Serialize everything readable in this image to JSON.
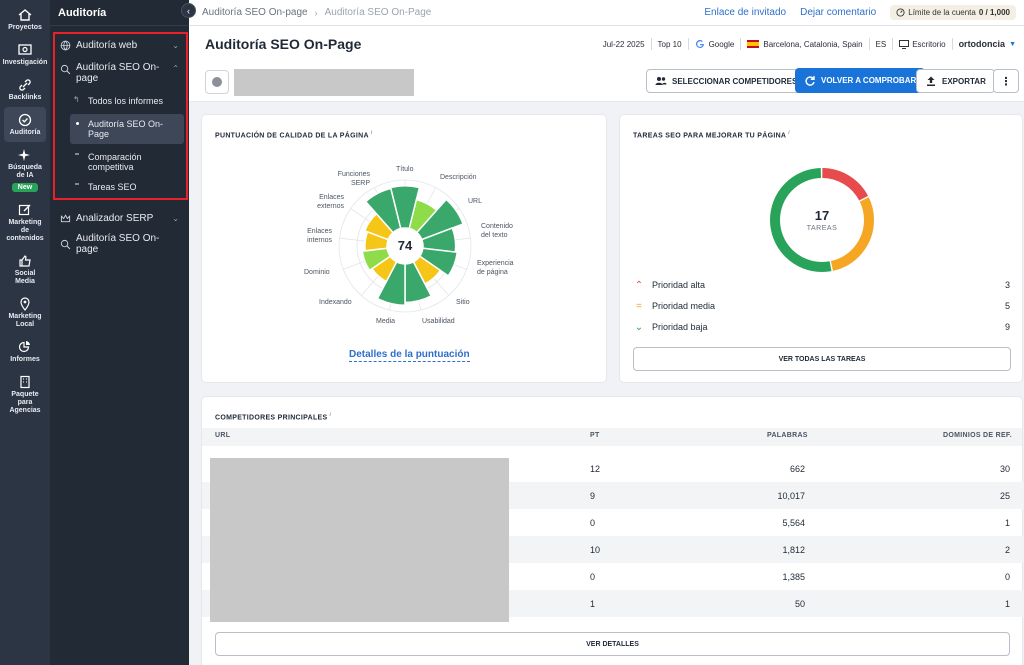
{
  "rail": [
    {
      "label": "Proyectos",
      "icon": "home-icon"
    },
    {
      "label": "Investigación",
      "icon": "research-icon"
    },
    {
      "label": "Backlinks",
      "icon": "link-icon"
    },
    {
      "label": "Auditoría",
      "icon": "check-circle-icon",
      "active": true
    },
    {
      "label": "Búsqueda de IA",
      "icon": "sparkle-icon",
      "badge": "New"
    },
    {
      "label": "Marketing de contenidos",
      "icon": "edit-icon"
    },
    {
      "label": "Social Media",
      "icon": "thumbs-up-icon"
    },
    {
      "label": "Marketing Local",
      "icon": "pin-icon"
    },
    {
      "label": "Informes",
      "icon": "pie-chart-icon"
    },
    {
      "label": "Paquete para Agencias",
      "icon": "building-icon"
    }
  ],
  "sidebar": {
    "title": "Auditoría",
    "groups": [
      {
        "label": "Auditoría web",
        "icon": "globe-icon"
      },
      {
        "label": "Auditoría SEO On-page",
        "icon": "search-icon"
      },
      {
        "label": "Analizador SERP",
        "icon": "crown-icon"
      },
      {
        "label": "Auditoría SEO On-page",
        "icon": "search-icon"
      }
    ],
    "subitems": [
      {
        "label": "Todos los informes"
      },
      {
        "label": "Auditoría SEO On-Page",
        "active": true
      },
      {
        "label": "Comparación competitiva"
      },
      {
        "label": "Tareas SEO"
      }
    ]
  },
  "topbar": {
    "crumbs": [
      "Auditoría SEO On-page",
      "Auditoría SEO On-Page"
    ],
    "invite_link": "Enlace de invitado",
    "comment_link": "Dejar comentario",
    "limit_label": "Límite de la cuenta",
    "limit_value": "0 / 1,000"
  },
  "header": {
    "title": "Auditoría SEO On-Page",
    "date": "Jul-22 2025",
    "top": "Top 10",
    "engine": "Google",
    "location": "Barcelona, Catalonia, Spain",
    "lang": "ES",
    "device": "Escritorio",
    "project": "ortodoncia"
  },
  "actions": {
    "competitors": "SELECCIONAR COMPETIDORES",
    "recheck": "VOLVER A COMPROBAR",
    "export": "EXPORTAR"
  },
  "score_card": {
    "title": "PUNTUACIÓN DE CALIDAD DE LA PÁGINA",
    "score": "74",
    "details_link": "Detalles de la puntuación",
    "labels": [
      "Título",
      "Descripción",
      "URL",
      "Contenido del texto",
      "Experiencia de página",
      "Sitio",
      "Usabilidad",
      "Media",
      "Indexando",
      "Dominio",
      "Enlaces internos",
      "Enlaces externos",
      "Funciones SERP"
    ]
  },
  "chart_data": {
    "type": "polar-area",
    "categories": [
      "Título",
      "Descripción",
      "URL",
      "Contenido del texto",
      "Experiencia de página",
      "Sitio",
      "Usabilidad",
      "Media",
      "Indexando",
      "Dominio",
      "Enlaces internos",
      "Enlaces externos",
      "Funciones SERP"
    ],
    "values": [
      88,
      62,
      92,
      68,
      72,
      52,
      80,
      86,
      46,
      52,
      46,
      52,
      86
    ],
    "colors": [
      "#3aa86b",
      "#8fdc4a",
      "#3aa86b",
      "#3aa86b",
      "#3aa86b",
      "#f5c518",
      "#3aa86b",
      "#3aa86b",
      "#f5c518",
      "#8fdc4a",
      "#f5c518",
      "#f5c518",
      "#3aa86b"
    ],
    "center_value": 74,
    "grid": true
  },
  "tasks_card": {
    "title": "TAREAS SEO PARA MEJORAR TU PÁGINA",
    "total": "17",
    "total_label": "TAREAS",
    "priorities": [
      {
        "label": "Prioridad alta",
        "value": "3",
        "color": "#e84b4b",
        "icon": "double-chevron-up-icon"
      },
      {
        "label": "Prioridad media",
        "value": "5",
        "color": "#f5a623",
        "icon": "equals-icon"
      },
      {
        "label": "Prioridad baja",
        "value": "9",
        "color": "#2aa35a",
        "icon": "double-chevron-down-icon"
      }
    ],
    "all_tasks_button": "VER TODAS LAS TAREAS"
  },
  "competitors": {
    "title": "COMPETIDORES PRINCIPALES",
    "columns": [
      "URL",
      "PT",
      "PALABRAS",
      "DOMINIOS DE REF."
    ],
    "rows": [
      {
        "pt": "12",
        "words": "662",
        "refs": "30"
      },
      {
        "pt": "9",
        "words": "10,017",
        "refs": "25"
      },
      {
        "pt": "0",
        "words": "5,564",
        "refs": "1"
      },
      {
        "pt": "10",
        "words": "1,812",
        "refs": "2"
      },
      {
        "pt": "0",
        "words": "1,385",
        "refs": "0"
      },
      {
        "pt": "1",
        "words": "50",
        "refs": "1"
      }
    ],
    "details_button": "VER DETALLES"
  }
}
